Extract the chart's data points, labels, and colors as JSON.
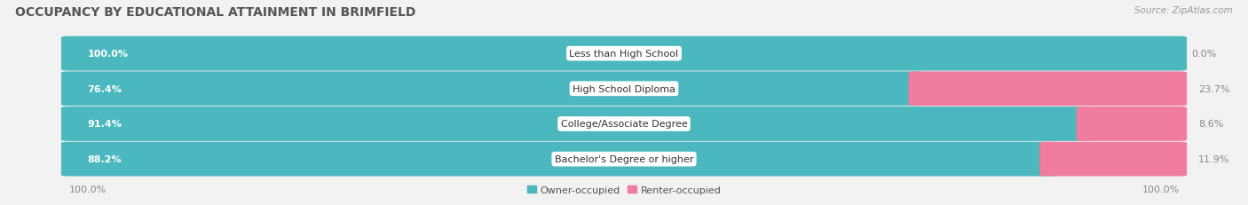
{
  "title": "OCCUPANCY BY EDUCATIONAL ATTAINMENT IN BRIMFIELD",
  "source": "Source: ZipAtlas.com",
  "categories": [
    "Less than High School",
    "High School Diploma",
    "College/Associate Degree",
    "Bachelor's Degree or higher"
  ],
  "owner_pct": [
    100.0,
    76.4,
    91.4,
    88.2
  ],
  "renter_pct": [
    0.0,
    23.7,
    8.6,
    11.9
  ],
  "owner_color": "#4ab8be",
  "renter_color": "#f07ca0",
  "bg_color": "#f2f2f2",
  "bar_bg_color": "#e4e4e4",
  "title_fontsize": 10,
  "source_fontsize": 7.5,
  "label_fontsize": 8,
  "bar_label_fontsize": 8,
  "axis_label_fontsize": 8,
  "legend_fontsize": 8,
  "left_axis_label": "100.0%",
  "right_axis_label": "100.0%"
}
